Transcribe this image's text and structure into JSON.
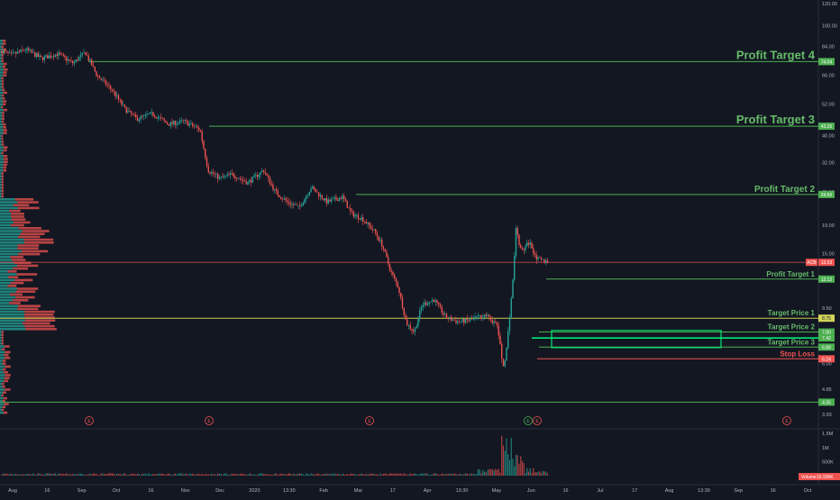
{
  "colors": {
    "background": "#131722",
    "up": "#26a69a",
    "down": "#ef5350",
    "profit": "#4caf50",
    "profit_text": "#66bb6a",
    "stop": "#ef5350",
    "entry": "#c8c850",
    "axis_text": "#b2b5be",
    "grid": "#1e222d",
    "bright_green": "#00e676"
  },
  "chart_data": {
    "type": "candlestick",
    "title": "",
    "price_scale": "log",
    "ylim": [
      3.7,
      120
    ],
    "price_ticks": [
      "120.00",
      "100.00",
      "84.00",
      "66.00",
      "52.00",
      "40.00",
      "32.00",
      "25.00",
      "19.00",
      "15.00",
      "12.00",
      "9.50",
      "7.60",
      "6.00",
      "4.85",
      "3.93"
    ],
    "x_ticks": [
      "Aug",
      "16",
      "Sep",
      "Oct",
      "16",
      "Nov",
      "Dec",
      "2020",
      "13:30",
      "Feb",
      "Mar",
      "17",
      "Apr",
      "13:30",
      "May",
      "Jun",
      "16",
      "Jul",
      "17",
      "Aug",
      "13:30",
      "Sep",
      "16",
      "Oct"
    ],
    "levels": [
      {
        "label": "Profit Target 4",
        "price": 74.04,
        "tag": "74.04",
        "role": "profit",
        "size": "large"
      },
      {
        "label": "Profit Target 3",
        "price": 43.26,
        "tag": "43.26",
        "role": "profit",
        "size": "large"
      },
      {
        "label": "Profit Target 2",
        "price": 24.5,
        "tag": "24.50",
        "role": "profit",
        "size": "medium"
      },
      {
        "label": "Profit Target 1",
        "price": 12.12,
        "tag": "12.12",
        "role": "profit",
        "size": "small"
      },
      {
        "label": "Target Price 1",
        "price": 8.75,
        "tag": "8.75",
        "role": "entry",
        "size": "small"
      },
      {
        "label": "Target Price 2",
        "price": 7.8,
        "tag": "7.80",
        "role": "profit",
        "size": "small"
      },
      {
        "label": "Target Price 3",
        "price": 6.88,
        "tag": "6.88",
        "role": "profit",
        "size": "small"
      },
      {
        "label": "Stop Loss",
        "price": 6.24,
        "tag": "6.24",
        "role": "stop",
        "size": "small"
      },
      {
        "label": "",
        "price": 4.35,
        "tag": "4.35",
        "role": "profit",
        "size": "small"
      }
    ],
    "current": {
      "symbol": "ACB",
      "price": 13.93,
      "tag": "13.93"
    },
    "extra_tag": "7.42",
    "earnings_markers": [
      "E",
      "E",
      "E",
      "E",
      "E",
      "E"
    ],
    "volume": {
      "label": "Volume",
      "value": "16.936K",
      "ticks": [
        "1.5M",
        "1M",
        "500K"
      ],
      "max": 1600000
    },
    "series": {
      "price_path": [
        [
          0,
          81
        ],
        [
          0.012,
          78
        ],
        [
          0.03,
          82
        ],
        [
          0.05,
          76
        ],
        [
          0.07,
          79
        ],
        [
          0.09,
          73
        ],
        [
          0.105,
          80
        ],
        [
          0.12,
          66
        ],
        [
          0.14,
          58
        ],
        [
          0.155,
          50
        ],
        [
          0.17,
          46
        ],
        [
          0.19,
          48
        ],
        [
          0.21,
          44
        ],
        [
          0.23,
          45
        ],
        [
          0.25,
          42
        ],
        [
          0.26,
          30
        ],
        [
          0.275,
          28
        ],
        [
          0.29,
          29
        ],
        [
          0.31,
          27
        ],
        [
          0.33,
          30
        ],
        [
          0.345,
          25
        ],
        [
          0.36,
          23
        ],
        [
          0.375,
          22
        ],
        [
          0.39,
          26
        ],
        [
          0.41,
          23
        ],
        [
          0.43,
          24
        ],
        [
          0.44,
          21
        ],
        [
          0.455,
          20
        ],
        [
          0.47,
          18
        ],
        [
          0.48,
          16
        ],
        [
          0.49,
          13
        ],
        [
          0.5,
          11.3
        ],
        [
          0.51,
          8.4
        ],
        [
          0.52,
          7.8
        ],
        [
          0.53,
          9.8
        ],
        [
          0.545,
          10.2
        ],
        [
          0.56,
          8.8
        ],
        [
          0.575,
          8.5
        ],
        [
          0.59,
          8.6
        ],
        [
          0.61,
          9.0
        ],
        [
          0.625,
          8.2
        ],
        [
          0.632,
          5.8
        ],
        [
          0.636,
          6.6
        ],
        [
          0.645,
          12.5
        ],
        [
          0.648,
          18.5
        ],
        [
          0.655,
          15.2
        ],
        [
          0.665,
          16.5
        ],
        [
          0.675,
          14.3
        ],
        [
          0.69,
          13.93
        ]
      ]
    }
  }
}
